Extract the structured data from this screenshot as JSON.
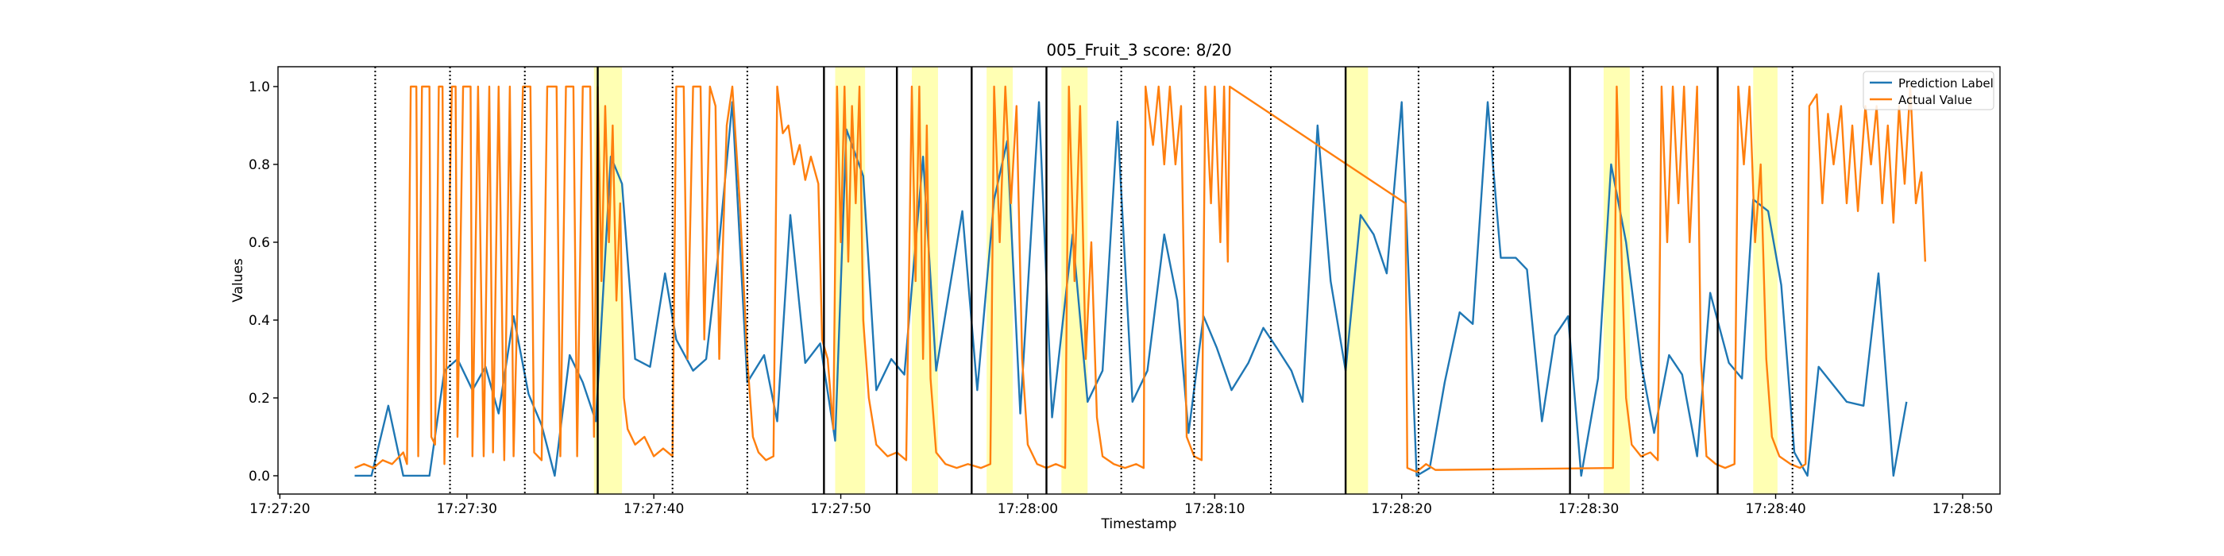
{
  "chart_data": {
    "type": "line",
    "title": "005_Fruit_3 score: 8/20",
    "x_label": "Timestamp",
    "y_label": "Values",
    "xlim": [
      62839.9,
      62932.0
    ],
    "ylim": [
      -0.047,
      1.051
    ],
    "xticks": [
      {
        "value": 62840,
        "label": "17:27:20"
      },
      {
        "value": 62850,
        "label": "17:27:30"
      },
      {
        "value": 62860,
        "label": "17:27:40"
      },
      {
        "value": 62870,
        "label": "17:27:50"
      },
      {
        "value": 62880,
        "label": "17:28:00"
      },
      {
        "value": 62890,
        "label": "17:28:10"
      },
      {
        "value": 62900,
        "label": "17:28:20"
      },
      {
        "value": 62910,
        "label": "17:28:30"
      },
      {
        "value": 62920,
        "label": "17:28:40"
      },
      {
        "value": 62930,
        "label": "17:28:50"
      }
    ],
    "yticks": [
      {
        "value": 0,
        "label": "0.0"
      },
      {
        "value": 0.2,
        "label": "0.2"
      },
      {
        "value": 0.4,
        "label": "0.4"
      },
      {
        "value": 0.6,
        "label": "0.6"
      },
      {
        "value": 0.8,
        "label": "0.8"
      },
      {
        "value": 1,
        "label": "1.0"
      }
    ],
    "legend": "upper right",
    "highlight_color": "#ffff99",
    "highlight_spans": [
      [
        62856.8,
        62858.3
      ],
      [
        62869.7,
        62871.3
      ],
      [
        62873.8,
        62875.2
      ],
      [
        62877.8,
        62879.2
      ],
      [
        62881.8,
        62883.2
      ],
      [
        62897.0,
        62898.2
      ],
      [
        62910.8,
        62912.2
      ],
      [
        62918.8,
        62920.1
      ]
    ],
    "dotted_lines": [
      62845.1,
      62849.1,
      62853.1,
      62861.0,
      62865.0,
      62885.0,
      62888.9,
      62893.0,
      62900.9,
      62904.9,
      62912.9,
      62920.9
    ],
    "solid_lines": [
      62857.0,
      62869.1,
      62873.0,
      62877.0,
      62881.0,
      62897.0,
      62909.0,
      62916.9
    ],
    "series": [
      {
        "name": "Prediction Label",
        "color": "#1f77b4",
        "x": [
          62844.0,
          62844.9,
          62845.8,
          62846.6,
          62848.0,
          62848.8,
          62849.5,
          62850.3,
          62851.0,
          62851.7,
          62852.5,
          62853.3,
          62854.0,
          62854.7,
          62855.5,
          62856.2,
          62856.9,
          62857.7,
          62858.3,
          62859.0,
          62859.8,
          62860.6,
          62861.2,
          62862.1,
          62862.8,
          62863.4,
          62864.2,
          62865.0,
          62865.9,
          62866.6,
          62867.3,
          62868.1,
          62868.9,
          62869.7,
          62870.3,
          62871.2,
          62871.9,
          62872.7,
          62873.4,
          62874.4,
          62875.1,
          62876.5,
          62877.3,
          62878.2,
          62878.9,
          62879.6,
          62880.6,
          62881.3,
          62882.4,
          62883.2,
          62884.0,
          62884.8,
          62885.6,
          62886.4,
          62887.3,
          62888.0,
          62888.6,
          62889.4,
          62890.1,
          62890.9,
          62891.8,
          62892.6,
          62893.3,
          62894.1,
          62894.7,
          62895.5,
          62896.2,
          62897.0,
          62897.8,
          62898.5,
          62899.2,
          62900.0,
          62900.8,
          62901.5,
          62902.3,
          62903.1,
          62903.8,
          62904.6,
          62905.3,
          62906.1,
          62906.7,
          62907.5,
          62908.2,
          62908.9,
          62909.6,
          62910.5,
          62911.2,
          62912.0,
          62912.8,
          62913.5,
          62914.3,
          62915.0,
          62915.8,
          62916.5,
          62917.5,
          62918.2,
          62918.8,
          62919.6,
          62920.3,
          62921.0,
          62921.7,
          62922.3,
          62923.8,
          62924.7,
          62925.5,
          62926.3,
          62927.0
        ],
        "values": [
          0.0,
          0.0,
          0.18,
          0.0,
          0.0,
          0.27,
          0.3,
          0.22,
          0.28,
          0.16,
          0.41,
          0.21,
          0.13,
          0.0,
          0.31,
          0.24,
          0.14,
          0.82,
          0.75,
          0.3,
          0.28,
          0.52,
          0.35,
          0.27,
          0.3,
          0.55,
          0.96,
          0.24,
          0.31,
          0.14,
          0.67,
          0.29,
          0.34,
          0.09,
          0.89,
          0.77,
          0.22,
          0.3,
          0.26,
          0.82,
          0.27,
          0.68,
          0.22,
          0.71,
          0.86,
          0.16,
          0.96,
          0.15,
          0.62,
          0.19,
          0.27,
          0.91,
          0.19,
          0.27,
          0.62,
          0.45,
          0.11,
          0.41,
          0.33,
          0.22,
          0.29,
          0.38,
          0.33,
          0.27,
          0.19,
          0.9,
          0.5,
          0.27,
          0.67,
          0.62,
          0.52,
          0.96,
          0.0,
          0.02,
          0.24,
          0.42,
          0.39,
          0.96,
          0.56,
          0.56,
          0.53,
          0.14,
          0.36,
          0.41,
          0.0,
          0.25,
          0.8,
          0.6,
          0.29,
          0.11,
          0.31,
          0.26,
          0.05,
          0.47,
          0.29,
          0.25,
          0.71,
          0.68,
          0.49,
          0.06,
          0.0,
          0.28,
          0.19,
          0.18,
          0.52,
          0.0,
          0.19
        ]
      },
      {
        "name": "Actual Value",
        "color": "#ff7f0e",
        "x": [
          62844.0,
          62844.5,
          62845.0,
          62845.5,
          62846.0,
          62846.6,
          62846.8,
          62847.0,
          62847.3,
          62847.4,
          62847.6,
          62848.0,
          62848.1,
          62848.3,
          62848.5,
          62848.7,
          62848.8,
          62849.2,
          62849.4,
          62849.5,
          62849.8,
          62850.2,
          62850.3,
          62850.6,
          62850.9,
          62851.2,
          62851.4,
          62851.7,
          62852.0,
          62852.3,
          62852.5,
          62853.0,
          62853.4,
          62853.6,
          62854.0,
          62854.3,
          62854.8,
          62855.0,
          62855.3,
          62855.7,
          62855.9,
          62856.2,
          62856.6,
          62856.8,
          62857.0,
          62857.2,
          62857.4,
          62857.6,
          62857.8,
          62858.0,
          62858.2,
          62858.4,
          62858.6,
          62859.0,
          62859.5,
          62860.0,
          62860.5,
          62861.0,
          62861.2,
          62861.6,
          62861.8,
          62862.1,
          62862.5,
          62862.7,
          62863.0,
          62863.3,
          62863.5,
          62863.9,
          62864.2,
          62864.6,
          62865.0,
          62865.3,
          62865.6,
          62866.0,
          62866.4,
          62866.6,
          62866.9,
          62867.2,
          62867.5,
          62867.8,
          62868.1,
          62868.4,
          62868.8,
          62869.0,
          62869.3,
          62869.6,
          62869.8,
          62870.0,
          62870.2,
          62870.4,
          62870.6,
          62870.8,
          62871.0,
          62871.2,
          62871.5,
          62871.9,
          62872.5,
          62873.0,
          62873.5,
          62873.8,
          62874.0,
          62874.2,
          62874.4,
          62874.6,
          62874.8,
          62875.1,
          62875.6,
          62876.2,
          62876.8,
          62877.5,
          62878.0,
          62878.2,
          62878.5,
          62878.8,
          62879.1,
          62879.4,
          62879.7,
          62880.0,
          62880.5,
          62881.0,
          62881.5,
          62882.0,
          62882.2,
          62882.5,
          62882.8,
          62883.1,
          62883.4,
          62883.7,
          62884.0,
          62884.6,
          62885.2,
          62885.8,
          62886.2,
          62886.3,
          62886.7,
          62887.0,
          62887.3,
          62887.6,
          62887.9,
          62888.2,
          62888.5,
          62888.9,
          62889.3,
          62889.5,
          62889.8,
          62890.0,
          62890.3,
          62890.5,
          62890.7,
          62890.8,
          62900.2,
          62900.3,
          62900.8,
          62901.3,
          62901.8,
          62902.0,
          62911.3,
          62911.5,
          62911.8,
          62912.0,
          62912.3,
          62912.8,
          62913.3,
          62913.7,
          62913.9,
          62914.2,
          62914.5,
          62914.8,
          62915.1,
          62915.4,
          62915.8,
          62916.0,
          62916.3,
          62916.8,
          62917.3,
          62917.8,
          62918.0,
          62918.3,
          62918.6,
          62918.9,
          62919.2,
          62919.5,
          62919.8,
          62920.2,
          62920.8,
          62921.3,
          62921.6,
          62921.8,
          62922.2,
          62922.5,
          62922.8,
          62923.1,
          62923.5,
          62923.8,
          62924.1,
          62924.4,
          62924.8,
          62925.1,
          62925.4,
          62925.7,
          62926.0,
          62926.3,
          62926.6,
          62926.9,
          62927.2,
          62927.5,
          62927.8,
          62928.0
        ],
        "values": [
          0.02,
          0.03,
          0.02,
          0.04,
          0.03,
          0.06,
          0.03,
          1.0,
          1.0,
          0.05,
          1.0,
          1.0,
          0.1,
          0.08,
          1.0,
          1.0,
          0.03,
          1.0,
          1.0,
          0.1,
          1.0,
          1.0,
          0.05,
          1.0,
          0.05,
          1.0,
          0.06,
          1.0,
          0.04,
          1.0,
          0.05,
          1.0,
          1.0,
          0.06,
          0.04,
          1.0,
          1.0,
          0.05,
          1.0,
          1.0,
          0.05,
          1.0,
          1.0,
          0.1,
          1.0,
          0.5,
          0.95,
          0.6,
          0.9,
          0.45,
          0.7,
          0.2,
          0.12,
          0.08,
          0.1,
          0.05,
          0.07,
          0.05,
          1.0,
          1.0,
          0.3,
          1.0,
          1.0,
          0.35,
          1.0,
          0.95,
          0.3,
          0.9,
          1.0,
          0.7,
          0.3,
          0.1,
          0.06,
          0.04,
          0.05,
          1.0,
          0.88,
          0.9,
          0.8,
          0.85,
          0.76,
          0.82,
          0.75,
          0.35,
          0.3,
          0.12,
          1.0,
          0.6,
          1.0,
          0.55,
          0.95,
          0.7,
          1.0,
          0.4,
          0.2,
          0.08,
          0.05,
          0.06,
          0.04,
          1.0,
          0.5,
          1.0,
          0.3,
          0.9,
          0.25,
          0.06,
          0.03,
          0.02,
          0.03,
          0.02,
          0.03,
          1.0,
          0.6,
          1.0,
          0.7,
          0.95,
          0.3,
          0.08,
          0.03,
          0.02,
          0.03,
          0.02,
          1.0,
          0.5,
          0.95,
          0.3,
          0.6,
          0.15,
          0.05,
          0.03,
          0.02,
          0.03,
          0.02,
          1.0,
          0.85,
          1.0,
          0.8,
          1.0,
          0.8,
          0.95,
          0.1,
          0.05,
          0.04,
          1.0,
          0.7,
          1.0,
          0.6,
          1.0,
          0.55,
          1.0,
          0.7,
          0.02,
          0.01,
          0.03,
          0.015,
          0.015,
          0.02,
          1.0,
          0.5,
          0.2,
          0.08,
          0.05,
          0.06,
          0.04,
          1.0,
          0.6,
          1.0,
          0.7,
          1.0,
          0.6,
          1.0,
          0.3,
          0.05,
          0.03,
          0.02,
          0.03,
          1.0,
          0.8,
          1.0,
          0.6,
          0.8,
          0.3,
          0.1,
          0.05,
          0.03,
          0.02,
          0.03,
          0.95,
          0.98,
          0.7,
          0.93,
          0.8,
          0.95,
          0.7,
          0.9,
          0.68,
          0.95,
          0.8,
          0.95,
          0.7,
          0.9,
          0.65,
          0.95,
          0.75,
          1.0,
          0.7,
          0.78,
          0.55
        ]
      }
    ]
  }
}
